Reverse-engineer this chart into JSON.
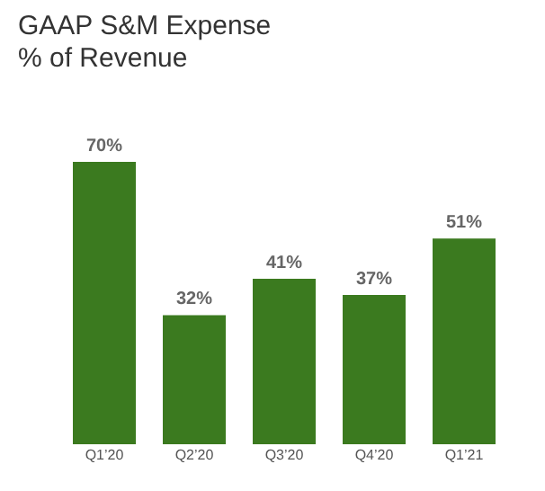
{
  "chart_data": {
    "type": "bar",
    "title": "GAAP S&M Expense\n% of Revenue",
    "categories": [
      "Q1’20",
      "Q2’20",
      "Q3’20",
      "Q4’20",
      "Q1’21"
    ],
    "values": [
      70,
      32,
      41,
      37,
      51
    ],
    "value_labels": [
      "70%",
      "32%",
      "41%",
      "37%",
      "51%"
    ],
    "color": "#3b7a1f",
    "grid": false
  }
}
